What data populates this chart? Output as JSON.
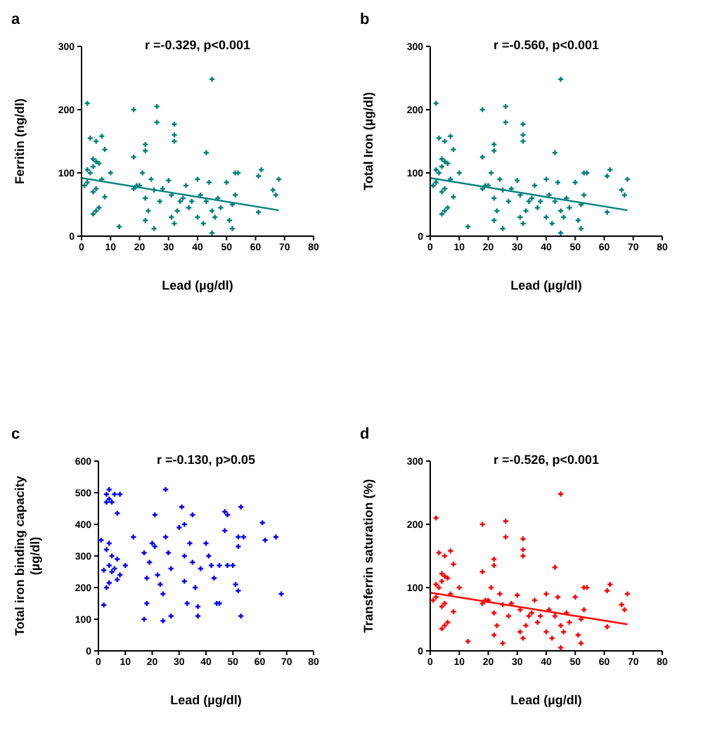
{
  "chart_data": [
    {
      "type": "scatter",
      "title": "a",
      "xlabel": "Lead (µg/dl)",
      "ylabel": "Ferritin (ng/dl)",
      "annotations": [
        "r =-0.329, p<0.001"
      ],
      "xlim": [
        0,
        80
      ],
      "xticks": [
        0,
        10,
        20,
        30,
        40,
        50,
        60,
        70,
        80
      ],
      "ylim": [
        0,
        300
      ],
      "yticks": [
        0,
        100,
        200,
        300
      ],
      "series": [
        {
          "color": "#00827f",
          "marker": "cross",
          "x": [
            2,
            45,
            18,
            26,
            26,
            32,
            32,
            32,
            43,
            22,
            22,
            18,
            3,
            5,
            7,
            4,
            5,
            6,
            4,
            8,
            2,
            3,
            10,
            1,
            2,
            4,
            5,
            7,
            8,
            6,
            4,
            5,
            13,
            20,
            21,
            22,
            23,
            24,
            25,
            25,
            22,
            27,
            28,
            30,
            31,
            31,
            32,
            33,
            34,
            35,
            36,
            37,
            38,
            40,
            40,
            41,
            42,
            43,
            44,
            45,
            45,
            46,
            47,
            48,
            50,
            51,
            52,
            52,
            53,
            53,
            54,
            61,
            61,
            62,
            66,
            67,
            68,
            18,
            19
          ],
          "values": [
            210,
            248,
            200,
            205,
            180,
            177,
            160,
            150,
            132,
            145,
            135,
            125,
            155,
            150,
            158,
            122,
            118,
            115,
            110,
            137,
            105,
            100,
            100,
            80,
            85,
            70,
            75,
            90,
            62,
            45,
            35,
            40,
            15,
            80,
            100,
            60,
            40,
            90,
            73,
            12,
            25,
            55,
            75,
            88,
            65,
            30,
            20,
            40,
            55,
            60,
            80,
            45,
            55,
            90,
            30,
            65,
            20,
            55,
            85,
            5,
            40,
            30,
            60,
            45,
            85,
            25,
            50,
            12,
            65,
            100,
            100,
            95,
            38,
            105,
            73,
            65,
            90,
            75,
            80
          ]
        },
        {
          "type": "line",
          "marker": "none",
          "color": "#00827f",
          "x": [
            0,
            68
          ],
          "values": [
            92,
            41
          ]
        }
      ]
    },
    {
      "type": "scatter",
      "title": "b",
      "xlabel": "Lead (µg/dl)",
      "ylabel": "Total Iron (µg/dl)",
      "annotations": [
        "r =-0.560, p<0.001"
      ],
      "xlim": [
        0,
        80
      ],
      "xticks": [
        0,
        10,
        20,
        30,
        40,
        50,
        60,
        70,
        80
      ],
      "ylim": [
        0,
        300
      ],
      "yticks": [
        0,
        100,
        200,
        300
      ],
      "series": [
        {
          "color": "#00827f",
          "marker": "cross",
          "x": [
            2,
            45,
            18,
            26,
            26,
            32,
            32,
            32,
            43,
            22,
            22,
            18,
            3,
            5,
            7,
            4,
            5,
            6,
            4,
            8,
            2,
            3,
            10,
            1,
            2,
            4,
            5,
            7,
            8,
            6,
            4,
            5,
            13,
            20,
            21,
            22,
            23,
            24,
            25,
            25,
            22,
            27,
            28,
            30,
            31,
            31,
            32,
            33,
            34,
            35,
            36,
            37,
            38,
            40,
            40,
            41,
            42,
            43,
            44,
            45,
            45,
            46,
            47,
            48,
            50,
            51,
            52,
            52,
            53,
            53,
            54,
            61,
            61,
            62,
            66,
            67,
            68,
            18,
            19
          ],
          "values": [
            210,
            248,
            200,
            205,
            180,
            177,
            160,
            150,
            132,
            145,
            135,
            125,
            155,
            150,
            158,
            122,
            118,
            115,
            110,
            137,
            105,
            100,
            100,
            80,
            85,
            70,
            75,
            90,
            62,
            45,
            35,
            40,
            15,
            80,
            100,
            60,
            40,
            90,
            73,
            12,
            25,
            55,
            75,
            88,
            65,
            30,
            20,
            40,
            55,
            60,
            80,
            45,
            55,
            90,
            30,
            65,
            20,
            55,
            85,
            5,
            40,
            30,
            60,
            45,
            85,
            25,
            50,
            12,
            65,
            100,
            100,
            95,
            38,
            105,
            73,
            65,
            90,
            75,
            80
          ]
        },
        {
          "type": "line",
          "marker": "none",
          "color": "#00827f",
          "x": [
            0,
            68
          ],
          "values": [
            92,
            41
          ]
        }
      ]
    },
    {
      "type": "scatter",
      "title": "c",
      "xlabel": "Lead (µg/dl)",
      "ylabel": "Total iron binding capacity\n(µg/dl)",
      "annotations": [
        "r =-0.130, p>0.05"
      ],
      "xlim": [
        0,
        80
      ],
      "xticks": [
        0,
        10,
        20,
        30,
        40,
        50,
        60,
        70,
        80
      ],
      "ylim": [
        0,
        600
      ],
      "yticks": [
        0,
        100,
        200,
        300,
        400,
        500,
        600
      ],
      "series": [
        {
          "color": "#0000ff",
          "marker": "cross",
          "x": [
            1,
            2,
            2,
            3,
            3,
            4,
            4,
            5,
            6,
            7,
            8,
            3,
            4,
            5,
            4,
            5,
            6,
            7,
            8,
            4,
            7,
            3,
            10,
            13,
            17,
            17,
            18,
            18,
            19,
            20,
            21,
            21,
            22,
            23,
            24,
            24,
            25,
            25,
            26,
            27,
            27,
            30,
            31,
            32,
            32,
            33,
            32,
            34,
            35,
            35,
            36,
            37,
            37,
            38,
            40,
            41,
            42,
            43,
            44,
            45,
            45,
            47,
            48,
            48,
            50,
            51,
            52,
            52,
            52,
            53,
            53,
            54,
            61,
            62,
            66,
            68,
            47
          ],
          "values": [
            350,
            145,
            255,
            495,
            470,
            510,
            480,
            470,
            495,
            435,
            495,
            320,
            340,
            300,
            270,
            250,
            260,
            290,
            240,
            215,
            225,
            200,
            270,
            360,
            310,
            100,
            150,
            230,
            280,
            340,
            430,
            330,
            240,
            210,
            95,
            180,
            510,
            360,
            310,
            110,
            260,
            390,
            455,
            400,
            300,
            150,
            220,
            340,
            280,
            430,
            200,
            140,
            110,
            260,
            340,
            300,
            270,
            230,
            150,
            270,
            150,
            380,
            430,
            270,
            270,
            210,
            360,
            330,
            190,
            110,
            455,
            360,
            405,
            350,
            360,
            180,
            440
          ]
        }
      ]
    },
    {
      "type": "scatter",
      "title": "d",
      "xlabel": "Lead (µg/dl)",
      "ylabel": "Transferrin saturation (%)",
      "annotations": [
        "r =-0.526, p<0.001"
      ],
      "xlim": [
        0,
        80
      ],
      "xticks": [
        0,
        10,
        20,
        30,
        40,
        50,
        60,
        70,
        80
      ],
      "ylim": [
        0,
        300
      ],
      "yticks": [
        0,
        100,
        200,
        300
      ],
      "series": [
        {
          "color": "#ff0000",
          "marker": "cross",
          "x": [
            2,
            45,
            18,
            26,
            26,
            32,
            32,
            32,
            43,
            22,
            22,
            18,
            3,
            5,
            7,
            4,
            5,
            6,
            4,
            8,
            2,
            3,
            10,
            1,
            2,
            4,
            5,
            7,
            8,
            6,
            4,
            5,
            13,
            20,
            21,
            22,
            23,
            24,
            25,
            25,
            22,
            27,
            28,
            30,
            31,
            31,
            32,
            33,
            34,
            35,
            36,
            37,
            38,
            40,
            40,
            41,
            42,
            43,
            44,
            45,
            45,
            46,
            47,
            48,
            50,
            51,
            52,
            52,
            53,
            53,
            54,
            61,
            61,
            62,
            66,
            67,
            68,
            18,
            19
          ],
          "values": [
            210,
            248,
            200,
            205,
            180,
            177,
            160,
            150,
            132,
            145,
            135,
            125,
            155,
            150,
            158,
            122,
            118,
            115,
            110,
            137,
            105,
            100,
            100,
            80,
            85,
            70,
            75,
            90,
            62,
            45,
            35,
            40,
            15,
            80,
            100,
            60,
            40,
            90,
            73,
            12,
            25,
            55,
            75,
            88,
            65,
            30,
            20,
            40,
            55,
            60,
            80,
            45,
            55,
            90,
            30,
            65,
            20,
            55,
            85,
            5,
            40,
            30,
            60,
            45,
            85,
            25,
            50,
            12,
            65,
            100,
            100,
            95,
            38,
            105,
            73,
            65,
            90,
            75,
            80
          ]
        },
        {
          "type": "line",
          "marker": "none",
          "color": "#ff0000",
          "x": [
            0,
            68
          ],
          "values": [
            92,
            42
          ]
        }
      ]
    }
  ]
}
